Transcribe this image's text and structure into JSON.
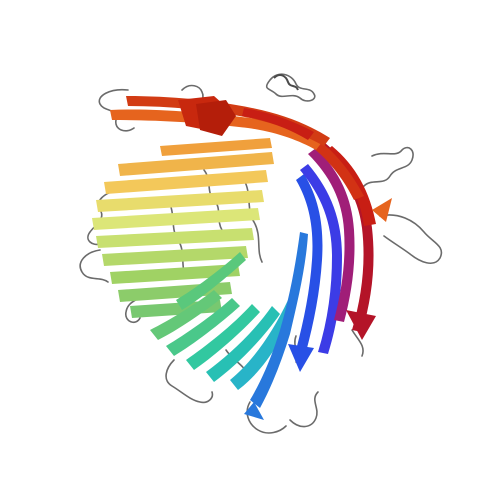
{
  "image": {
    "subject": "protein-ribbon-cartoon",
    "background": "#ffffff",
    "coil_color": "#6b6b6b",
    "palette": {
      "n_terminus": "#1e64c8",
      "blue": "#2850e6",
      "cyan": "#28b4c8",
      "teal": "#32c8a0",
      "green": "#64c878",
      "lime": "#a0d264",
      "yellow": "#dce678",
      "orange": "#f0a03c",
      "orange_red": "#e6641e",
      "red": "#c81e14",
      "c_terminus": "#b40000"
    }
  }
}
